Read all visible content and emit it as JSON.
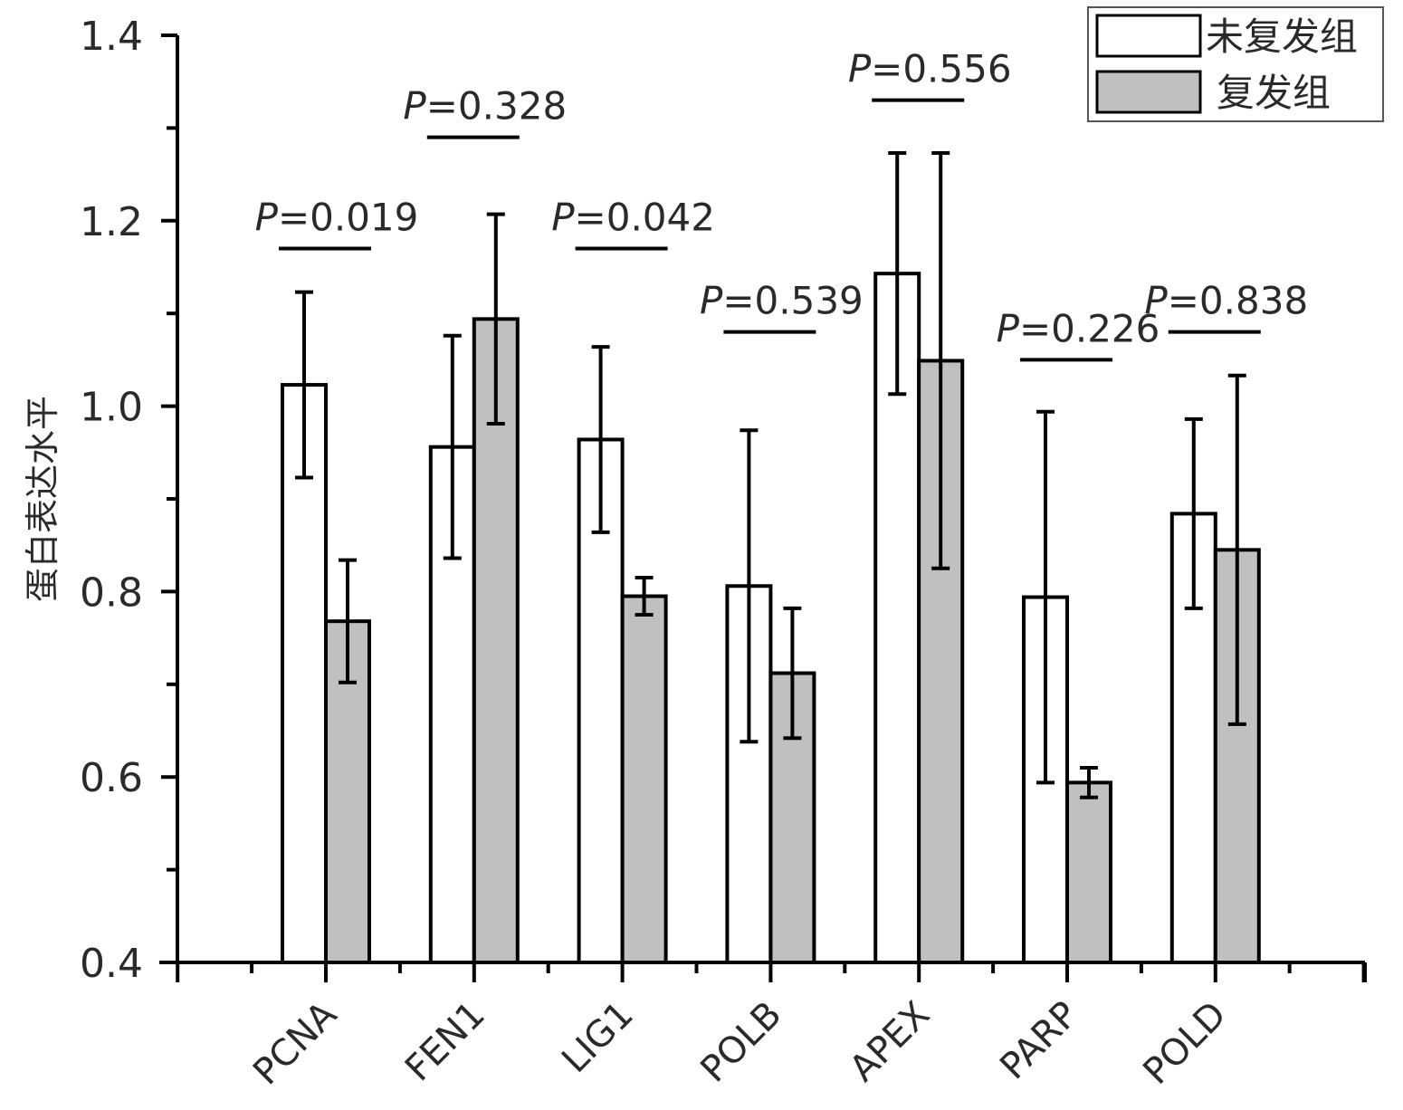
{
  "chart_data": {
    "type": "bar",
    "title": "",
    "xlabel": "",
    "ylabel": "蛋白表达水平",
    "ylim": [
      0.4,
      1.4
    ],
    "yticks": [
      "0.4",
      "0.6",
      "0.8",
      "1.0",
      "1.2",
      "1.4"
    ],
    "grid": false,
    "legend_position": "top-right",
    "categories": [
      "PCNA",
      "FEN1",
      "LIG1",
      "POLB",
      "APEX",
      "PARP",
      "POLD"
    ],
    "series": [
      {
        "name": "未复发组",
        "color": "#ffffff",
        "values": [
          1.023,
          0.956,
          0.964,
          0.806,
          1.143,
          0.794,
          0.884
        ],
        "errors": [
          0.1,
          0.12,
          0.1,
          0.168,
          0.13,
          0.2,
          0.102
        ]
      },
      {
        "name": "复发组",
        "color": "#c0c0c0",
        "values": [
          0.768,
          1.094,
          0.795,
          0.712,
          1.049,
          0.594,
          0.845
        ],
        "errors": [
          0.066,
          0.113,
          0.02,
          0.07,
          0.224,
          0.016,
          0.188
        ]
      }
    ],
    "annotations": [
      {
        "category": "PCNA",
        "text": "P=0.019",
        "y": 1.17
      },
      {
        "category": "FEN1",
        "text": "P=0.328",
        "y": 1.29
      },
      {
        "category": "LIG1",
        "text": "P=0.042",
        "y": 1.17
      },
      {
        "category": "POLB",
        "text": "P=0.539",
        "y": 1.08
      },
      {
        "category": "APEX",
        "text": "P=0.556",
        "y": 1.33
      },
      {
        "category": "PARP",
        "text": "P=0.226",
        "y": 1.05
      },
      {
        "category": "POLD",
        "text": "P=0.838",
        "y": 1.08
      }
    ]
  }
}
